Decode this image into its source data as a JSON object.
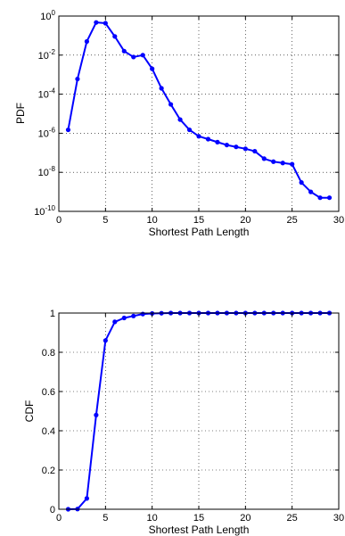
{
  "chart_data": [
    {
      "type": "line",
      "xlabel": "Shortest Path Length",
      "ylabel": "PDF",
      "yscale": "log",
      "grid": true,
      "xlim": [
        0,
        30
      ],
      "ylim": [
        1e-10,
        1
      ],
      "xticks": [
        0,
        5,
        10,
        15,
        20,
        25,
        30
      ],
      "yticks": [
        {
          "value": 1e-10,
          "base": "10",
          "exp": "-10"
        },
        {
          "value": 1e-08,
          "base": "10",
          "exp": "-8"
        },
        {
          "value": 1e-06,
          "base": "10",
          "exp": "-6"
        },
        {
          "value": 0.0001,
          "base": "10",
          "exp": "-4"
        },
        {
          "value": 0.01,
          "base": "10",
          "exp": "-2"
        },
        {
          "value": 1,
          "base": "10",
          "exp": "0"
        }
      ],
      "color": "#0000ff",
      "series": [
        {
          "x": [
            1,
            2,
            3,
            4,
            5,
            6,
            7,
            8,
            9,
            10,
            11,
            12,
            13,
            14,
            15,
            16,
            17,
            18,
            19,
            20,
            21,
            22,
            23,
            24,
            25,
            26,
            27,
            28,
            29
          ],
          "y": [
            1.5e-06,
            0.0006,
            0.05,
            0.47,
            0.43,
            0.09,
            0.016,
            0.008,
            0.01,
            0.002,
            0.0002,
            3e-05,
            5e-06,
            1.5e-06,
            7e-07,
            5e-07,
            3.5e-07,
            2.5e-07,
            2e-07,
            1.6e-07,
            1.2e-07,
            5e-08,
            3.5e-08,
            3e-08,
            2.6e-08,
            3e-09,
            1e-09,
            5e-10,
            5e-10
          ]
        }
      ]
    },
    {
      "type": "line",
      "xlabel": "Shortest Path Length",
      "ylabel": "CDF",
      "grid": true,
      "xlim": [
        0,
        30
      ],
      "ylim": [
        0,
        1
      ],
      "xticks": [
        0,
        5,
        10,
        15,
        20,
        25,
        30
      ],
      "yticks": [
        0,
        0.2,
        0.4,
        0.6,
        0.8,
        1
      ],
      "color": "#0000ff",
      "series": [
        {
          "x": [
            1,
            2,
            3,
            4,
            5,
            6,
            7,
            8,
            9,
            10,
            11,
            12,
            13,
            14,
            15,
            16,
            17,
            18,
            19,
            20,
            21,
            22,
            23,
            24,
            25,
            26,
            27,
            28,
            29
          ],
          "y": [
            0,
            0.001,
            0.055,
            0.48,
            0.86,
            0.955,
            0.975,
            0.985,
            0.995,
            0.998,
            0.999,
            1,
            1,
            1,
            1,
            1,
            1,
            1,
            1,
            1,
            1,
            1,
            1,
            1,
            1,
            1,
            1,
            1,
            1
          ]
        }
      ]
    }
  ]
}
